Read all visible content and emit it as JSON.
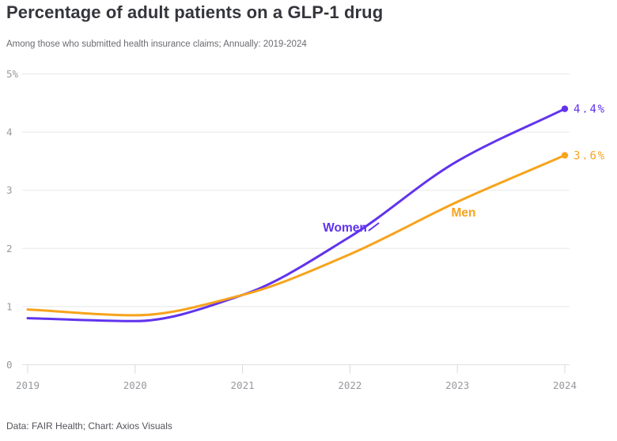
{
  "header": {
    "title": "Percentage of adult patients on a GLP-1 drug",
    "subtitle": "Among those who submitted health insurance claims; Annually: 2019-2024"
  },
  "footer": {
    "credit": "Data: FAIR Health; Chart: Axios Visuals"
  },
  "chart_data": {
    "type": "line",
    "title": "Percentage of adult patients on a GLP-1 drug",
    "subtitle": "Among those who submitted health insurance claims; Annually: 2019-2024",
    "categories": [
      "2019",
      "2020",
      "2021",
      "2022",
      "2023",
      "2024"
    ],
    "xlabel": "",
    "ylabel": "",
    "unit": "%",
    "ylim": [
      0,
      5
    ],
    "grid": "horizontal",
    "legend_position": "inline-annotations",
    "y_ticks": [
      {
        "value": 5,
        "label": "5%"
      },
      {
        "value": 4,
        "label": "4"
      },
      {
        "value": 3,
        "label": "3"
      },
      {
        "value": 2,
        "label": "2"
      },
      {
        "value": 1,
        "label": "1"
      },
      {
        "value": 0,
        "label": "0"
      }
    ],
    "series": [
      {
        "name": "Women",
        "color": "#6133ee",
        "values": [
          0.8,
          0.75,
          1.2,
          2.2,
          3.5,
          4.4
        ],
        "end_label": "4.4%"
      },
      {
        "name": "Men",
        "color": "#f7a31c",
        "values": [
          0.95,
          0.85,
          1.2,
          1.9,
          2.8,
          3.6
        ],
        "end_label": "3.6%"
      }
    ],
    "colors": {
      "background": "#ffffff",
      "gridline": "#e8e8ea",
      "axis_text": "#97999d",
      "title_text": "#35363c",
      "subtitle_text": "#6a6b70",
      "credit_text": "#53545a"
    }
  }
}
